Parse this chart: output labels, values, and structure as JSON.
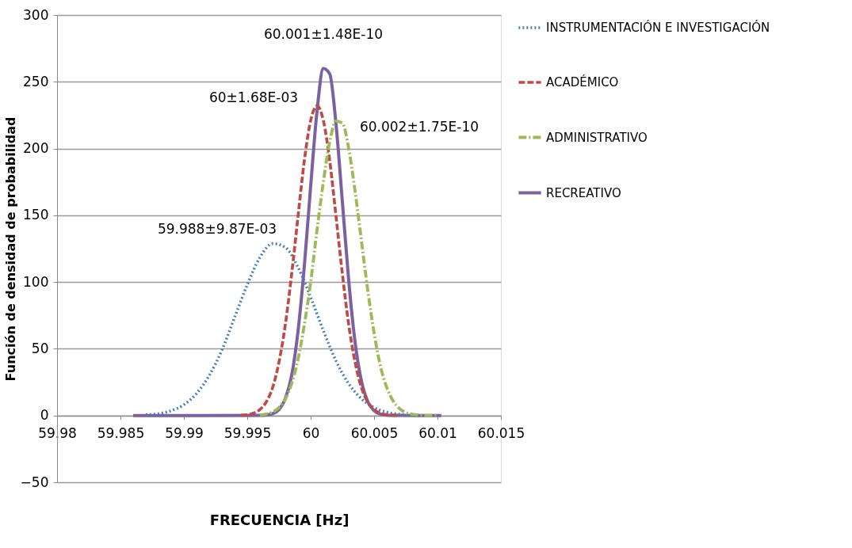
{
  "chart_data": {
    "type": "line",
    "xlabel": "FRECUENCIA [Hz]",
    "ylabel": "Función de densidad de probabilidad",
    "xlim": [
      59.98,
      60.015
    ],
    "xticks": [
      59.98,
      59.985,
      59.99,
      59.995,
      60,
      60.005,
      60.01,
      60.015
    ],
    "ylim": [
      -50,
      300
    ],
    "yticks": [
      -50,
      0,
      50,
      100,
      150,
      200,
      250,
      300
    ],
    "grid": "y",
    "legend": "right",
    "marker": "none",
    "series": [
      {
        "name": "INSTRUMENTACIÓN E INVESTIGACIÓN",
        "color": "#4a7ebb",
        "line_style": "dotted",
        "x": [
          59.987,
          59.988,
          59.989,
          59.99,
          59.991,
          59.992,
          59.993,
          59.994,
          59.995,
          59.996,
          59.997,
          59.998,
          59.999,
          60.0,
          60.001,
          60.002,
          60.003,
          60.004,
          60.005,
          60.006,
          60.007,
          60.008
        ],
        "values": [
          0.5,
          1.4,
          3.6,
          8.1,
          16.5,
          30,
          49,
          73.5,
          98,
          118.5,
          128.8,
          126,
          111,
          88.6,
          63.6,
          40.9,
          23.8,
          12.6,
          6.0,
          2.5,
          1.0,
          0.3
        ]
      },
      {
        "name": "ACADÉMICO",
        "color": "#be4b48",
        "line_style": "dashed",
        "x": [
          59.9945,
          59.995,
          59.9955,
          59.996,
          59.9965,
          59.997,
          59.9975,
          59.998,
          59.9985,
          59.999,
          59.9995,
          60.0,
          60.0005,
          60.001,
          60.0015,
          60.002,
          60.0025,
          60.003,
          60.0035,
          60.004,
          60.0045,
          60.005,
          60.0055,
          60.006,
          60.007
        ],
        "values": [
          0.2,
          0.6,
          1.8,
          4.5,
          10.2,
          21,
          40,
          68,
          106,
          149,
          191,
          221,
          232,
          221,
          191,
          149,
          106,
          68,
          40,
          21,
          10.2,
          4.5,
          1.8,
          0.6,
          0.1
        ]
      },
      {
        "name": "ADMINISTRATIVO",
        "color": "#9bbb59",
        "line_style": "dashdot",
        "x": [
          59.996,
          59.9965,
          59.997,
          59.9975,
          59.998,
          59.9985,
          59.999,
          59.9995,
          60.0,
          60.0005,
          60.001,
          60.0015,
          60.002,
          60.0025,
          60.003,
          60.0035,
          60.004,
          60.0045,
          60.005,
          60.0055,
          60.006,
          60.0065,
          60.007,
          60.0075,
          60.008,
          60.009,
          60.01
        ],
        "values": [
          0.4,
          1.1,
          2.7,
          6,
          12.4,
          24,
          42,
          68,
          100,
          139,
          175,
          205,
          220.5,
          219,
          200,
          168,
          131,
          94,
          62,
          37,
          21,
          11,
          5.2,
          2.3,
          0.9,
          0.1,
          0
        ]
      },
      {
        "name": "RECREATIVO",
        "color": "#7d60a0",
        "line_style": "solid",
        "x": [
          59.986,
          59.99,
          59.996,
          59.9965,
          59.997,
          59.9975,
          59.998,
          59.9985,
          59.999,
          59.9995,
          60.0,
          60.0005,
          60.001,
          60.0015,
          60.002,
          60.0025,
          60.003,
          60.0035,
          60.004,
          60.0045,
          60.005,
          60.0055,
          60.006,
          60.0065,
          60.0103
        ],
        "values": [
          0,
          0,
          0.1,
          0.4,
          1.4,
          4.5,
          12.7,
          30,
          63,
          112,
          172,
          228,
          260,
          256,
          218,
          160,
          101,
          55,
          26,
          10.5,
          3.7,
          1.1,
          0.3,
          0.1,
          0
        ]
      }
    ],
    "annotations": [
      "59.988±9.87E-03",
      "60±1.68E-03",
      "60.002±1.75E-10",
      "60.001±1.48E-10"
    ]
  }
}
